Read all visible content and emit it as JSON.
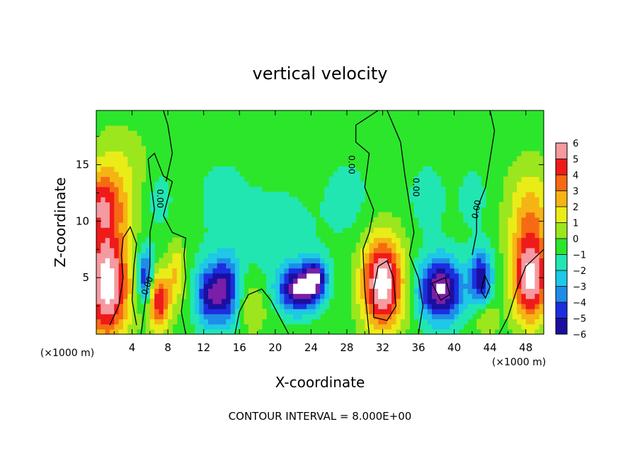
{
  "chart_data": {
    "type": "heatmap",
    "title": "vertical velocity",
    "xlabel": "X-coordinate",
    "ylabel": "Z-coordinate",
    "x_unit_label": "(×1000 m)",
    "x_tick_labels": [
      "4",
      "8",
      "12",
      "16",
      "20",
      "24",
      "28",
      "32",
      "36",
      "40",
      "44",
      "48"
    ],
    "x_ticks": [
      4,
      8,
      12,
      16,
      20,
      24,
      28,
      32,
      36,
      40,
      44,
      48
    ],
    "y_tick_labels": [
      "5",
      "10",
      "15"
    ],
    "y_ticks": [
      5,
      10,
      15
    ],
    "xlim": [
      0,
      50
    ],
    "ylim": [
      0,
      19.8
    ],
    "colorbar_labels": [
      "6",
      "5",
      "4",
      "3",
      "2",
      "1",
      "0",
      "−1",
      "−2",
      "−3",
      "−4",
      "−5",
      "−6"
    ],
    "colorbar_values": [
      6,
      5,
      4,
      3,
      2,
      1,
      0,
      -1,
      -2,
      -3,
      -4,
      -5,
      -6
    ],
    "contour_label": "0.00",
    "footer": "CONTOUR INTERVAL = 8.000E+00",
    "grid": false,
    "features": [
      {
        "x": 1.2,
        "z": 4.5,
        "w": 2.2,
        "sx": 2.5,
        "sz": 5.0
      },
      {
        "x": 0.5,
        "z": 11.5,
        "w": 1.3,
        "sx": 2.8,
        "sz": 3.0
      },
      {
        "x": 2.5,
        "z": 15.0,
        "w": 0.4,
        "sx": 3.0,
        "sz": 3.5
      },
      {
        "x": 7.0,
        "z": 3.0,
        "w": 1.6,
        "sx": 1.3,
        "sz": 2.5
      },
      {
        "x": 5.5,
        "z": 5.0,
        "w": -1.5,
        "sx": 0.9,
        "sz": 2.5
      },
      {
        "x": 9.0,
        "z": 5.5,
        "w": 0.7,
        "sx": 1.0,
        "sz": 2.5
      },
      {
        "x": 12.5,
        "z": 3.5,
        "w": -1.3,
        "sx": 1.5,
        "sz": 2.8
      },
      {
        "x": 14.5,
        "z": 4.0,
        "w": -1.5,
        "sx": 1.5,
        "sz": 3.0
      },
      {
        "x": 17.5,
        "z": 2.5,
        "w": 0.4,
        "sx": 1.6,
        "sz": 2.5
      },
      {
        "x": 22.5,
        "z": 4.0,
        "w": -1.9,
        "sx": 2.2,
        "sz": 2.0
      },
      {
        "x": 24.5,
        "z": 5.0,
        "w": -1.5,
        "sx": 1.3,
        "sz": 1.8
      },
      {
        "x": 32.0,
        "z": 4.5,
        "w": 2.2,
        "sx": 2.3,
        "sz": 4.0
      },
      {
        "x": 38.5,
        "z": 4.0,
        "w": -2.0,
        "sx": 2.5,
        "sz": 2.8
      },
      {
        "x": 43.0,
        "z": 5.0,
        "w": -1.5,
        "sx": 1.2,
        "sz": 2.5
      },
      {
        "x": 48.5,
        "z": 5.0,
        "w": 2.0,
        "sx": 2.0,
        "sz": 4.0
      },
      {
        "x": 48.5,
        "z": 11.0,
        "w": 0.8,
        "sx": 2.5,
        "sz": 4.0
      },
      {
        "x": 43.5,
        "z": 1.5,
        "w": 0.5,
        "sx": 1.3,
        "sz": 1.5
      },
      {
        "x": 7.0,
        "z": 12.0,
        "w": -0.3,
        "sx": 1.5,
        "sz": 2.5
      },
      {
        "x": 14.0,
        "z": 12.0,
        "w": -0.25,
        "sx": 3.0,
        "sz": 4.0
      },
      {
        "x": 20.0,
        "z": 9.0,
        "w": -0.35,
        "sx": 4.0,
        "sz": 4.0
      },
      {
        "x": 28.0,
        "z": 12.0,
        "w": -0.25,
        "sx": 3.0,
        "sz": 4.0
      },
      {
        "x": 37.0,
        "z": 12.0,
        "w": -0.35,
        "sx": 2.0,
        "sz": 3.0
      },
      {
        "x": 42.0,
        "z": 12.0,
        "w": -0.35,
        "sx": 1.5,
        "sz": 2.5
      }
    ],
    "contours": [
      [
        [
          1.5,
          0.8
        ],
        [
          2.5,
          2.5
        ],
        [
          3.0,
          5.0
        ],
        [
          2.8,
          7.0
        ],
        [
          3.0,
          8.5
        ],
        [
          3.8,
          9.5
        ],
        [
          4.5,
          8.0
        ],
        [
          4.2,
          6.0
        ],
        [
          4.0,
          3.0
        ],
        [
          4.5,
          0.8
        ]
      ],
      [
        [
          5.0,
          0.0
        ],
        [
          5.5,
          3.0
        ],
        [
          6.0,
          6.0
        ],
        [
          6.0,
          9.0
        ],
        [
          6.5,
          11.0
        ],
        [
          6.0,
          14.0
        ],
        [
          5.8,
          15.5
        ],
        [
          6.5,
          16.0
        ],
        [
          7.5,
          14.0
        ],
        [
          8.5,
          13.5
        ],
        [
          8.0,
          12.0
        ],
        [
          7.5,
          10.5
        ],
        [
          8.5,
          9.0
        ],
        [
          10.0,
          8.5
        ],
        [
          9.8,
          7.0
        ],
        [
          10.0,
          5.0
        ],
        [
          9.5,
          2.0
        ],
        [
          10.0,
          0.0
        ]
      ],
      [
        [
          7.8,
          13.5
        ],
        [
          8.5,
          16.0
        ],
        [
          8.0,
          18.5
        ],
        [
          7.5,
          19.8
        ]
      ],
      [
        [
          15.5,
          0.0
        ],
        [
          16.0,
          2.0
        ],
        [
          17.0,
          3.5
        ],
        [
          18.5,
          4.0
        ],
        [
          19.5,
          3.0
        ],
        [
          20.5,
          1.5
        ],
        [
          21.5,
          0.0
        ]
      ],
      [
        [
          30.5,
          0.0
        ],
        [
          30.0,
          4.0
        ],
        [
          29.8,
          7.5
        ],
        [
          30.5,
          9.0
        ],
        [
          31.0,
          11.0
        ],
        [
          30.0,
          13.0
        ],
        [
          30.5,
          16.0
        ],
        [
          29.0,
          17.0
        ],
        [
          29.0,
          18.5
        ],
        [
          31.5,
          19.8
        ]
      ],
      [
        [
          32.5,
          19.8
        ],
        [
          34.0,
          17.0
        ],
        [
          34.5,
          14.0
        ],
        [
          35.0,
          11.5
        ],
        [
          35.5,
          9.0
        ],
        [
          35.0,
          7.0
        ],
        [
          36.0,
          5.0
        ],
        [
          36.5,
          2.5
        ],
        [
          36.0,
          0.0
        ]
      ],
      [
        [
          42.0,
          7.0
        ],
        [
          42.5,
          9.0
        ],
        [
          42.5,
          11.0
        ],
        [
          43.5,
          13.0
        ],
        [
          44.0,
          15.5
        ],
        [
          44.5,
          18.0
        ],
        [
          44.0,
          19.8
        ]
      ],
      [
        [
          45.0,
          0.0
        ],
        [
          46.0,
          1.5
        ],
        [
          47.0,
          4.0
        ],
        [
          48.0,
          6.0
        ],
        [
          50.0,
          7.5
        ]
      ],
      [
        [
          31.0,
          1.5
        ],
        [
          32.5,
          1.2
        ],
        [
          33.5,
          2.5
        ],
        [
          33.2,
          5.0
        ],
        [
          32.5,
          6.5
        ],
        [
          31.5,
          6.0
        ],
        [
          31.0,
          4.0
        ],
        [
          31.0,
          1.5
        ]
      ],
      [
        [
          37.5,
          4.5
        ],
        [
          38.5,
          3.0
        ],
        [
          39.5,
          3.5
        ],
        [
          39.0,
          5.0
        ],
        [
          37.5,
          4.5
        ]
      ],
      [
        [
          43.0,
          3.8
        ],
        [
          43.5,
          3.2
        ],
        [
          44.0,
          4.2
        ],
        [
          43.4,
          5.2
        ],
        [
          43.0,
          3.8
        ]
      ]
    ],
    "contour_label_positions": [
      {
        "x": 6.8,
        "z": 12.0,
        "rot": 90
      },
      {
        "x": 28.2,
        "z": 15.0,
        "rot": 90
      },
      {
        "x": 35.4,
        "z": 13.0,
        "rot": 90
      },
      {
        "x": 42.8,
        "z": 11.0,
        "rot": -80
      },
      {
        "x": 6.0,
        "z": 4.2,
        "rot": -70
      }
    ]
  }
}
